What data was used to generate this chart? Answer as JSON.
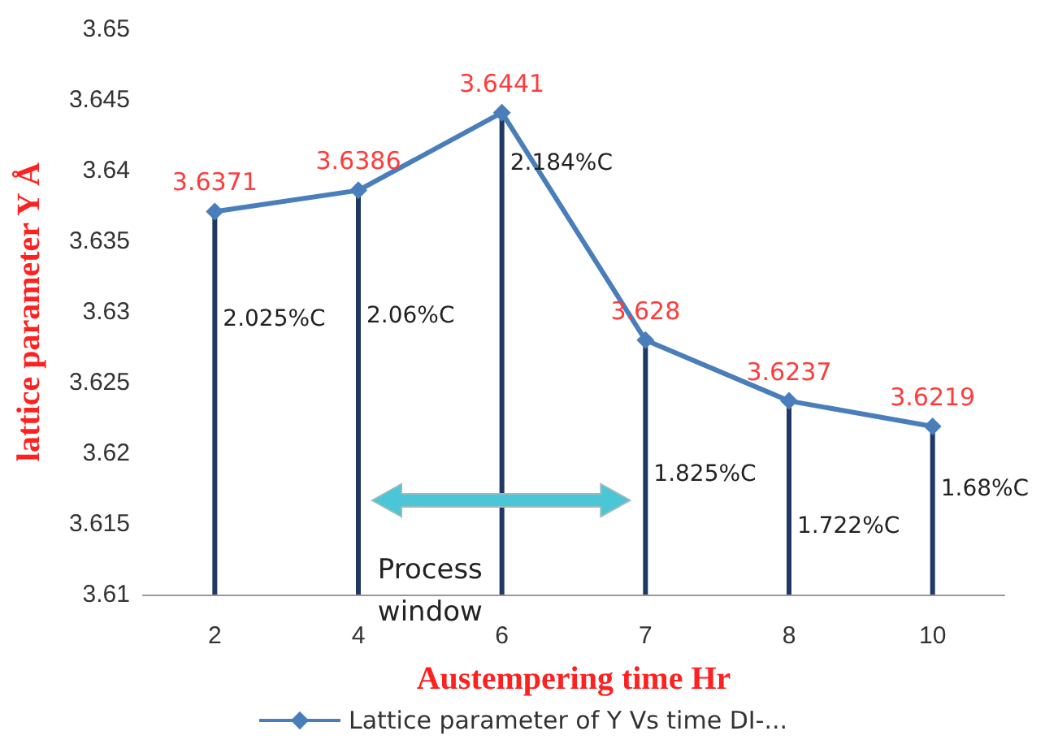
{
  "chart_data": {
    "type": "line",
    "xlabel": "Austempering time Hr",
    "ylabel": "lattice parameter Y Å",
    "categories": [
      "2",
      "4",
      "6",
      "7",
      "8",
      "10"
    ],
    "series": [
      {
        "name": "Lattice parameter of Y Vs time DI-...",
        "color": "#4a7ebb",
        "values": [
          3.6371,
          3.6386,
          3.6441,
          3.628,
          3.6237,
          3.6219
        ],
        "value_labels": [
          "3.6371",
          "3.6386",
          "3.6441",
          "3.628",
          "3.6237",
          "3.6219"
        ],
        "marker": "diamond"
      },
      {
        "type": "bar",
        "color": "#1f3864",
        "values": [
          3.6371,
          3.6386,
          3.6441,
          3.628,
          3.6237,
          3.6219
        ]
      }
    ],
    "ylim": [
      3.61,
      3.65
    ],
    "yticks": [
      3.61,
      3.615,
      3.62,
      3.625,
      3.63,
      3.635,
      3.64,
      3.645,
      3.65
    ],
    "grid": false,
    "legend": "bottom",
    "annotations": [
      {
        "text": "2.025%C",
        "x": "2",
        "y": 3.6295
      },
      {
        "text": "2.06%C",
        "x": "4",
        "y": 3.6297
      },
      {
        "text": "2.184%C",
        "x": "6",
        "y": 3.6405
      },
      {
        "text": "1.825%C",
        "x": "7",
        "y": 3.6185
      },
      {
        "text": "1.722%C",
        "x": "8",
        "y": 3.6148
      },
      {
        "text": "1.68%C",
        "x": "10",
        "y": 3.6175
      },
      "Process window"
    ]
  }
}
